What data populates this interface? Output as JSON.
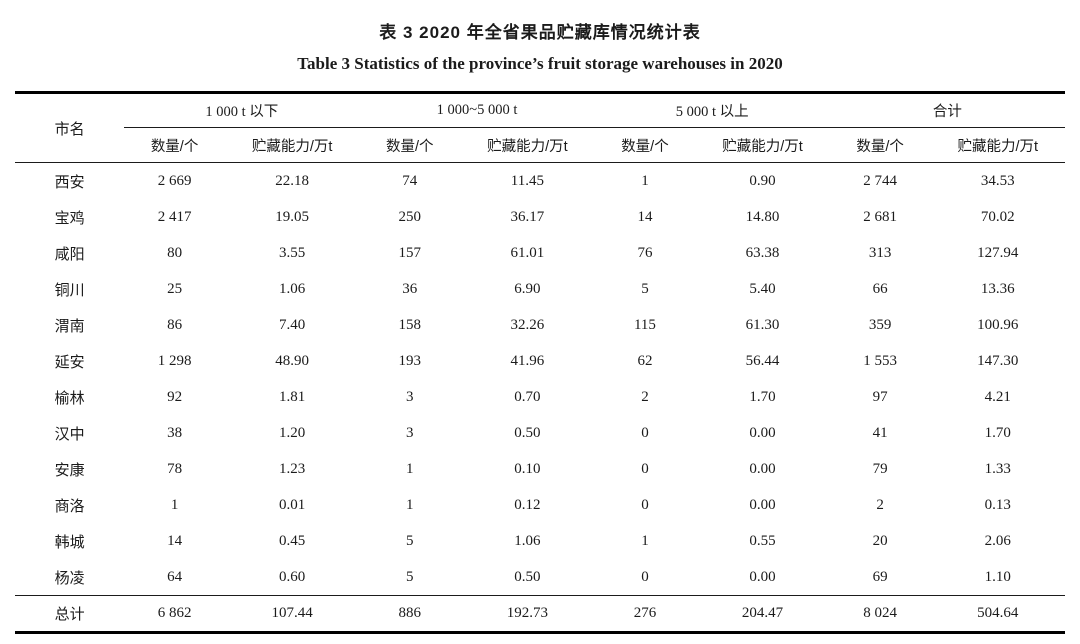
{
  "caption_zh": "表 3  2020 年全省果品贮藏库情况统计表",
  "caption_en": "Table 3  Statistics of the province’s fruit storage warehouses in 2020",
  "table": {
    "corner_header": "市名",
    "groups": [
      "1 000 t 以下",
      "1 000~5 000 t",
      "5 000 t 以上",
      "合计"
    ],
    "sub_headers": [
      "数量/个",
      "贮藏能力/万t"
    ],
    "rows": [
      {
        "city": "西安",
        "values": [
          "2 669",
          "22.18",
          "74",
          "11.45",
          "1",
          "0.90",
          "2 744",
          "34.53"
        ]
      },
      {
        "city": "宝鸡",
        "values": [
          "2 417",
          "19.05",
          "250",
          "36.17",
          "14",
          "14.80",
          "2 681",
          "70.02"
        ]
      },
      {
        "city": "咸阳",
        "values": [
          "80",
          "3.55",
          "157",
          "61.01",
          "76",
          "63.38",
          "313",
          "127.94"
        ]
      },
      {
        "city": "铜川",
        "values": [
          "25",
          "1.06",
          "36",
          "6.90",
          "5",
          "5.40",
          "66",
          "13.36"
        ]
      },
      {
        "city": "渭南",
        "values": [
          "86",
          "7.40",
          "158",
          "32.26",
          "115",
          "61.30",
          "359",
          "100.96"
        ]
      },
      {
        "city": "延安",
        "values": [
          "1 298",
          "48.90",
          "193",
          "41.96",
          "62",
          "56.44",
          "1 553",
          "147.30"
        ]
      },
      {
        "city": "榆林",
        "values": [
          "92",
          "1.81",
          "3",
          "0.70",
          "2",
          "1.70",
          "97",
          "4.21"
        ]
      },
      {
        "city": "汉中",
        "values": [
          "38",
          "1.20",
          "3",
          "0.50",
          "0",
          "0.00",
          "41",
          "1.70"
        ]
      },
      {
        "city": "安康",
        "values": [
          "78",
          "1.23",
          "1",
          "0.10",
          "0",
          "0.00",
          "79",
          "1.33"
        ]
      },
      {
        "city": "商洛",
        "values": [
          "1",
          "0.01",
          "1",
          "0.12",
          "0",
          "0.00",
          "2",
          "0.13"
        ]
      },
      {
        "city": "韩城",
        "values": [
          "14",
          "0.45",
          "5",
          "1.06",
          "1",
          "0.55",
          "20",
          "2.06"
        ]
      },
      {
        "city": "杨凌",
        "values": [
          "64",
          "0.60",
          "5",
          "0.50",
          "0",
          "0.00",
          "69",
          "1.10"
        ]
      }
    ],
    "total": {
      "label": "总计",
      "values": [
        "6 862",
        "107.44",
        "886",
        "192.73",
        "276",
        "204.47",
        "8 024",
        "504.64"
      ]
    }
  }
}
